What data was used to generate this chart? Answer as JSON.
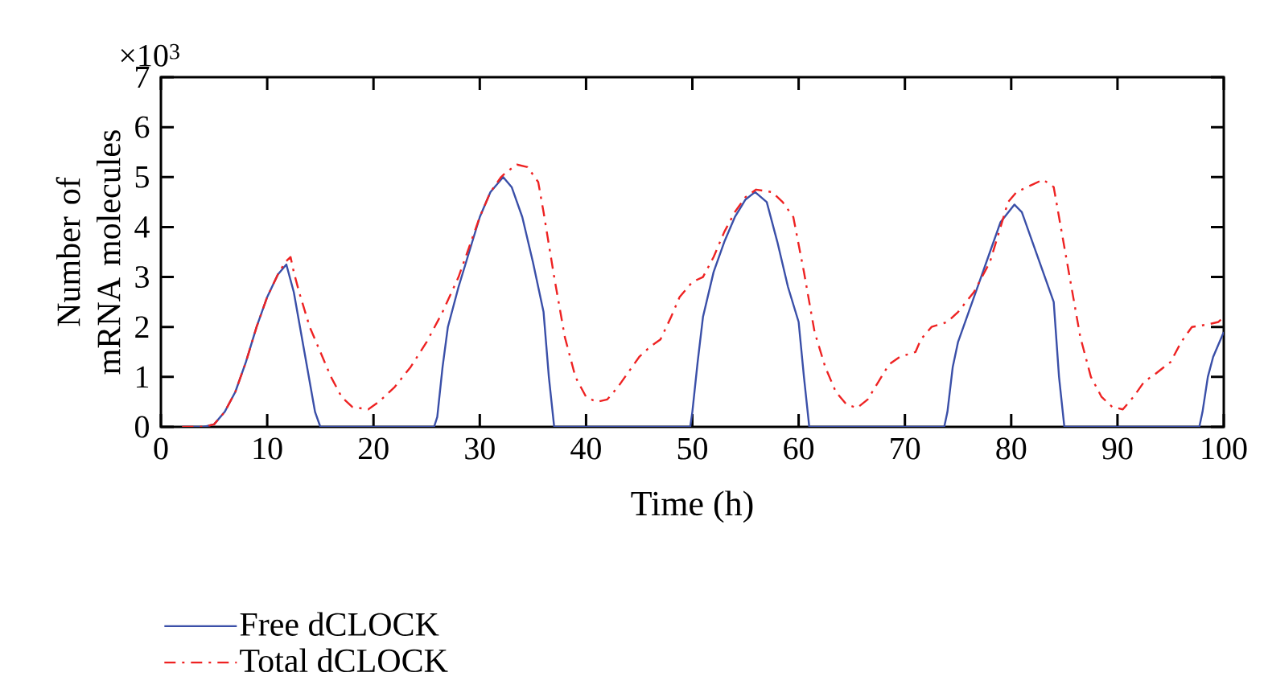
{
  "chart_data": {
    "type": "line",
    "xlabel": "Time (h)",
    "ylabel": "Number of mRNA molecules",
    "annotations": [
      "×10$^{3}$"
    ],
    "xlim": [
      0,
      100
    ],
    "ylim": [
      0,
      7
    ],
    "xticks": [
      0,
      10,
      20,
      30,
      40,
      50,
      60,
      70,
      80,
      90,
      100
    ],
    "yticks": [
      0,
      1,
      2,
      3,
      4,
      5,
      6,
      7
    ],
    "grid": false,
    "legend": "bottom",
    "series": [
      {
        "name": "Free dCLOCK",
        "color": "#3a4fa8",
        "line_style": "solid",
        "x": [
          2,
          4,
          5,
          6,
          7,
          8,
          9,
          10,
          11,
          11.8,
          12.5,
          13.5,
          14.5,
          15,
          25.7,
          26,
          26.5,
          27,
          28,
          29,
          30,
          31,
          32.2,
          33,
          34,
          35,
          36,
          36.5,
          37,
          49.8,
          50,
          50.5,
          51,
          52,
          53,
          54,
          55,
          55.9,
          57,
          58,
          59,
          60,
          60.5,
          61,
          73.7,
          74,
          74.5,
          75,
          76,
          77,
          78,
          79,
          80.3,
          81,
          82,
          83,
          84,
          84.5,
          85,
          97.7,
          98,
          98.5,
          99,
          100
        ],
        "values": [
          0,
          0,
          0.05,
          0.3,
          0.7,
          1.3,
          2.0,
          2.6,
          3.05,
          3.25,
          2.7,
          1.5,
          0.3,
          0,
          0,
          0.2,
          1.2,
          2.0,
          2.8,
          3.5,
          4.2,
          4.7,
          5.0,
          4.8,
          4.2,
          3.3,
          2.3,
          1.0,
          0,
          0,
          0.3,
          1.3,
          2.2,
          3.1,
          3.7,
          4.2,
          4.55,
          4.7,
          4.5,
          3.7,
          2.8,
          2.1,
          1.0,
          0,
          0,
          0.3,
          1.2,
          1.7,
          2.3,
          2.9,
          3.5,
          4.1,
          4.45,
          4.3,
          3.7,
          3.1,
          2.5,
          1.0,
          0,
          0,
          0.3,
          1.0,
          1.4,
          1.9
        ]
      },
      {
        "name": "Total dCLOCK",
        "color": "#ee2222",
        "line_style": "dashdot",
        "x": [
          2,
          4,
          5,
          6,
          7,
          8,
          9,
          10,
          11,
          11.7,
          12.2,
          12.5,
          13,
          14,
          15,
          16,
          17,
          18,
          19.5,
          20.5,
          22,
          23.5,
          25,
          26.5,
          28,
          29,
          30,
          31,
          32,
          32.5,
          33.5,
          34.5,
          35.5,
          36,
          37,
          38,
          39,
          40,
          41,
          42,
          43,
          44,
          45,
          46,
          47,
          48,
          48.8,
          50,
          51,
          52,
          53,
          54,
          55,
          56,
          57.5,
          58.5,
          59.5,
          60.5,
          61.5,
          62.5,
          63.5,
          64.5,
          65.5,
          66.5,
          67.5,
          68.5,
          69.5,
          71,
          71.5,
          72.5,
          74,
          75,
          76.5,
          78,
          79,
          79.7,
          80.5,
          82,
          83,
          84,
          84.5,
          85.5,
          86.5,
          87.5,
          88.5,
          89.5,
          90.5,
          91.5,
          92.5,
          93.5,
          95,
          96,
          97,
          98.5,
          99.5,
          100
        ],
        "values": [
          0,
          0,
          0.05,
          0.3,
          0.7,
          1.3,
          2.0,
          2.6,
          3.05,
          3.3,
          3.4,
          3.1,
          2.7,
          2.0,
          1.5,
          1.0,
          0.6,
          0.4,
          0.35,
          0.5,
          0.8,
          1.2,
          1.7,
          2.3,
          3.0,
          3.6,
          4.2,
          4.7,
          5.0,
          5.1,
          5.25,
          5.2,
          4.9,
          4.3,
          3.0,
          1.8,
          1.0,
          0.6,
          0.5,
          0.55,
          0.8,
          1.1,
          1.4,
          1.6,
          1.75,
          2.2,
          2.6,
          2.9,
          3.0,
          3.4,
          3.9,
          4.3,
          4.6,
          4.75,
          4.7,
          4.5,
          4.2,
          3.1,
          1.9,
          1.2,
          0.7,
          0.45,
          0.38,
          0.55,
          0.9,
          1.25,
          1.4,
          1.5,
          1.75,
          2.0,
          2.1,
          2.3,
          2.7,
          3.3,
          4.0,
          4.5,
          4.7,
          4.85,
          4.95,
          4.8,
          4.2,
          3.0,
          1.8,
          1.0,
          0.6,
          0.4,
          0.35,
          0.6,
          0.9,
          1.05,
          1.3,
          1.7,
          2.0,
          2.05,
          2.1,
          2.2
        ]
      }
    ]
  }
}
